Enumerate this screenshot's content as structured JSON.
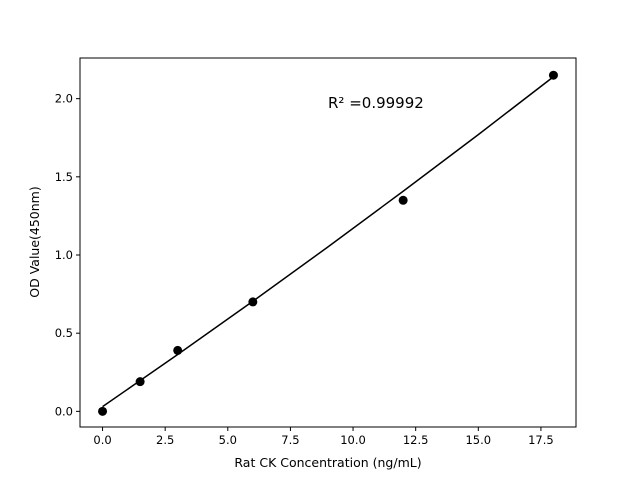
{
  "chart_data": {
    "type": "scatter",
    "xlabel": "Rat CK Concentration (ng/mL)",
    "ylabel": "OD Value(450nm)",
    "xlim": [
      -0.9,
      18.9
    ],
    "ylim": [
      -0.1,
      2.26
    ],
    "xticks": [
      "0.0",
      "2.5",
      "5.0",
      "7.5",
      "10.0",
      "12.5",
      "15.0",
      "17.5"
    ],
    "yticks": [
      "0.0",
      "0.5",
      "1.0",
      "1.5",
      "2.0"
    ],
    "grid": false,
    "annotation": "R² =0.99992",
    "points": {
      "x": [
        0,
        1.5,
        3,
        6,
        12,
        18
      ],
      "y": [
        0.0,
        0.19,
        0.39,
        0.7,
        1.35,
        2.15
      ]
    },
    "fit": {
      "x": [
        0,
        3,
        6,
        9,
        12,
        15,
        18
      ],
      "y": [
        0.03,
        0.364,
        0.704,
        1.052,
        1.408,
        1.77,
        2.14
      ]
    },
    "color": "#000000"
  }
}
